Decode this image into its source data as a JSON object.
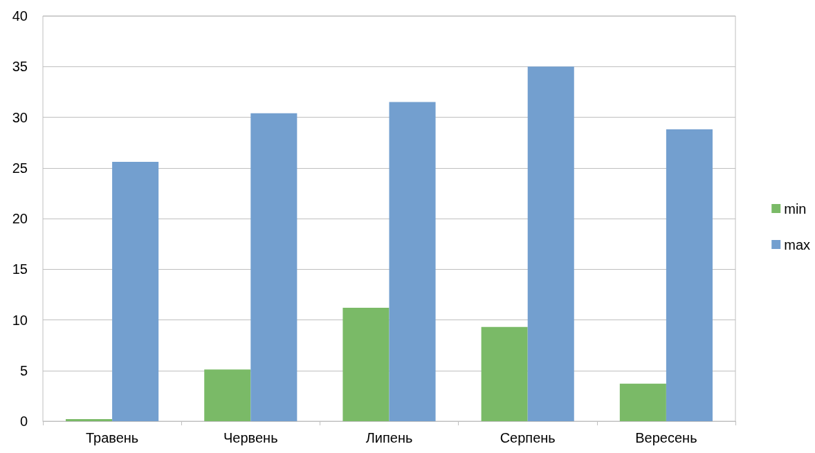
{
  "chart_data": {
    "type": "bar",
    "categories": [
      "Травень",
      "Червень",
      "Липень",
      "Серпень",
      "Вересень"
    ],
    "series": [
      {
        "name": "min",
        "color": "#7aba67",
        "values": [
          0.2,
          5.1,
          11.2,
          9.3,
          3.7
        ]
      },
      {
        "name": "max",
        "color": "#739fcf",
        "values": [
          25.6,
          30.4,
          31.5,
          35.0,
          28.8
        ]
      }
    ],
    "ylim": [
      0,
      40
    ],
    "yticks": [
      0,
      5,
      10,
      15,
      20,
      25,
      30,
      35,
      40
    ],
    "grid": "y",
    "legend": "right"
  }
}
